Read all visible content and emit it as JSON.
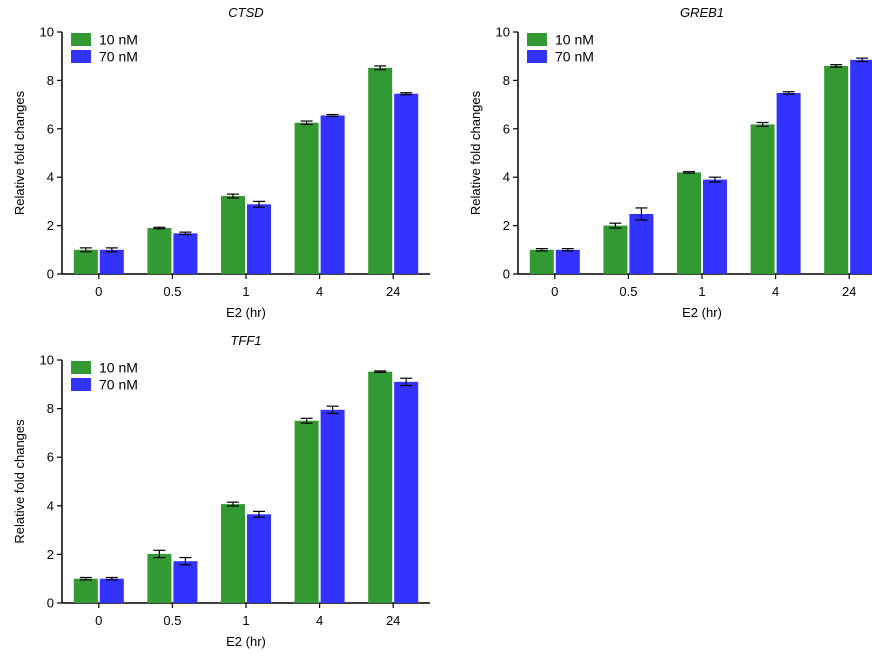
{
  "chart_data": [
    {
      "type": "bar",
      "title": "CTSD",
      "xlabel": "E2 (hr)",
      "ylabel": "Relative fold changes",
      "categories": [
        "0",
        "0.5",
        "1",
        "4",
        "24"
      ],
      "ylim": [
        0,
        10
      ],
      "yticks": [
        "0",
        "2",
        "4",
        "6",
        "8",
        "10"
      ],
      "legend_position": "top-left",
      "series": [
        {
          "name": "10 nM",
          "color": "#339933",
          "values": [
            1.0,
            1.9,
            3.22,
            6.25,
            8.52
          ],
          "errors": [
            0.08,
            0.03,
            0.08,
            0.07,
            0.08
          ]
        },
        {
          "name": "70 nM",
          "color": "#3333ff",
          "values": [
            1.0,
            1.68,
            2.88,
            6.55,
            7.45
          ],
          "errors": [
            0.08,
            0.05,
            0.12,
            0.04,
            0.04
          ]
        }
      ]
    },
    {
      "type": "bar",
      "title": "GREB1",
      "xlabel": "E2 (hr)",
      "ylabel": "Relative fold changes",
      "categories": [
        "0",
        "0.5",
        "1",
        "4",
        "24"
      ],
      "ylim": [
        0,
        10
      ],
      "yticks": [
        "0",
        "2",
        "4",
        "6",
        "8",
        "10"
      ],
      "legend_position": "top-left",
      "series": [
        {
          "name": "10 nM",
          "color": "#339933",
          "values": [
            1.0,
            2.0,
            4.2,
            6.18,
            8.6
          ],
          "errors": [
            0.05,
            0.1,
            0.03,
            0.08,
            0.05
          ]
        },
        {
          "name": "70 nM",
          "color": "#3333ff",
          "values": [
            1.0,
            2.48,
            3.9,
            7.48,
            8.85
          ],
          "errors": [
            0.05,
            0.25,
            0.1,
            0.05,
            0.07
          ]
        }
      ]
    },
    {
      "type": "bar",
      "title": "TFF1",
      "xlabel": "E2 (hr)",
      "ylabel": "Relative fold changes",
      "categories": [
        "0",
        "0.5",
        "1",
        "4",
        "24"
      ],
      "ylim": [
        0,
        10
      ],
      "yticks": [
        "0",
        "2",
        "4",
        "6",
        "8",
        "10"
      ],
      "legend_position": "top-left",
      "series": [
        {
          "name": "10 nM",
          "color": "#339933",
          "values": [
            1.0,
            2.02,
            4.07,
            7.5,
            9.52
          ],
          "errors": [
            0.05,
            0.15,
            0.08,
            0.1,
            0.03
          ]
        },
        {
          "name": "70 nM",
          "color": "#3333ff",
          "values": [
            1.0,
            1.72,
            3.65,
            7.95,
            9.1
          ],
          "errors": [
            0.05,
            0.15,
            0.12,
            0.15,
            0.15
          ]
        }
      ]
    }
  ]
}
